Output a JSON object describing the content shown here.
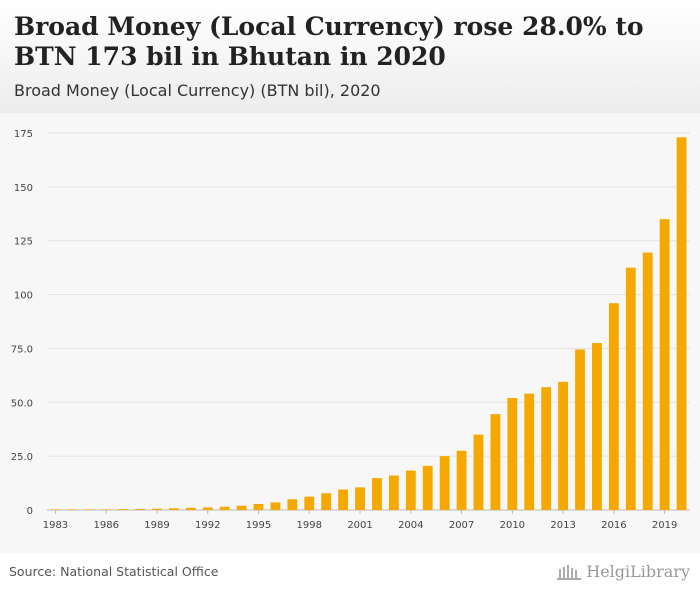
{
  "title": "Broad Money (Local Currency) rose 28.0% to BTN 173 bil in Bhutan in 2020",
  "subtitle": "Broad Money (Local Currency) (BTN bil), 2020",
  "source": "Source: National Statistical Office",
  "logo": {
    "text": "HelgiLibrary",
    "icon": "library-building-icon"
  },
  "colors": {
    "bar": "#f5a800",
    "grid": "#e3e3e3",
    "axis_text": "#444444",
    "background": "#f7f7f7"
  },
  "chart_data": {
    "type": "bar",
    "title": "Broad Money (Local Currency) rose 28.0% to BTN 173 bil in Bhutan in 2020",
    "subtitle": "Broad Money (Local Currency) (BTN bil), 2020",
    "xlabel": "",
    "ylabel": "",
    "ylim": [
      0,
      175
    ],
    "yticks": [
      0,
      25.0,
      50.0,
      75.0,
      100,
      125,
      150,
      175
    ],
    "ytick_labels": [
      "0",
      "25.0",
      "50.0",
      "75.0",
      "100",
      "125",
      "150",
      "175"
    ],
    "xtick_labels": [
      "1983",
      "1986",
      "1989",
      "1992",
      "1995",
      "1998",
      "2001",
      "2004",
      "2007",
      "2010",
      "2013",
      "2016",
      "2019"
    ],
    "categories": [
      1983,
      1984,
      1985,
      1986,
      1987,
      1988,
      1989,
      1990,
      1991,
      1992,
      1993,
      1994,
      1995,
      1996,
      1997,
      1998,
      1999,
      2000,
      2001,
      2002,
      2003,
      2004,
      2005,
      2006,
      2007,
      2008,
      2009,
      2010,
      2011,
      2012,
      2013,
      2014,
      2015,
      2016,
      2017,
      2018,
      2019,
      2020
    ],
    "values": [
      0.1,
      0.15,
      0.2,
      0.3,
      0.4,
      0.5,
      0.6,
      0.8,
      1.0,
      1.2,
      1.5,
      2.0,
      2.8,
      3.5,
      5.0,
      6.2,
      7.8,
      9.5,
      10.5,
      14.8,
      16.0,
      18.3,
      20.5,
      25.0,
      27.5,
      35.0,
      44.5,
      52.0,
      54.0,
      57.0,
      59.5,
      74.5,
      77.5,
      96.0,
      112.5,
      119.5,
      135.0,
      173.0
    ],
    "grid": true,
    "legend": "none"
  }
}
